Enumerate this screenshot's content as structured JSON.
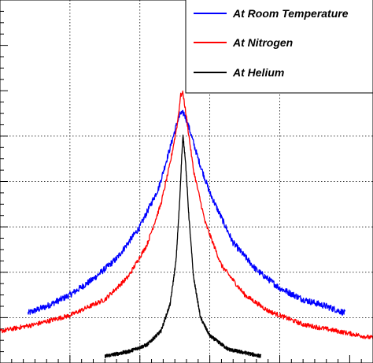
{
  "chart_data": {
    "type": "line",
    "title": "",
    "xlabel": "",
    "ylabel": "",
    "grid": true,
    "legend_position": "top-right",
    "xlim": [
      0,
      16
    ],
    "ylim": [
      0,
      16
    ],
    "x_gridlines": [
      3,
      6,
      9,
      12
    ],
    "y_gridlines": [
      2,
      4,
      6,
      8,
      10
    ],
    "series": [
      {
        "name": "At Room Temperature",
        "color": "#0000ff",
        "noise": 0.14,
        "points": [
          [
            1.2,
            2.2
          ],
          [
            2.0,
            2.5
          ],
          [
            3.0,
            3.0
          ],
          [
            4.0,
            3.7
          ],
          [
            5.0,
            4.6
          ],
          [
            6.0,
            6.0
          ],
          [
            6.8,
            7.7
          ],
          [
            7.3,
            9.5
          ],
          [
            7.6,
            10.6
          ],
          [
            7.75,
            11.0
          ],
          [
            7.9,
            11.0
          ],
          [
            8.1,
            10.4
          ],
          [
            8.5,
            9.0
          ],
          [
            9.0,
            7.5
          ],
          [
            10.0,
            5.3
          ],
          [
            11.0,
            4.1
          ],
          [
            12.0,
            3.3
          ],
          [
            13.0,
            2.8
          ],
          [
            14.0,
            2.5
          ],
          [
            14.8,
            2.2
          ]
        ]
      },
      {
        "name": "At Nitrogen",
        "color": "#ff0000",
        "noise": 0.1,
        "points": [
          [
            0.0,
            1.4
          ],
          [
            1.5,
            1.7
          ],
          [
            3.0,
            2.1
          ],
          [
            4.5,
            2.8
          ],
          [
            5.5,
            3.8
          ],
          [
            6.3,
            5.2
          ],
          [
            6.9,
            7.0
          ],
          [
            7.3,
            8.8
          ],
          [
            7.6,
            10.5
          ],
          [
            7.75,
            11.8
          ],
          [
            7.85,
            11.9
          ],
          [
            8.0,
            10.8
          ],
          [
            8.3,
            8.5
          ],
          [
            8.8,
            6.2
          ],
          [
            9.5,
            4.3
          ],
          [
            10.5,
            3.0
          ],
          [
            11.5,
            2.3
          ],
          [
            13.0,
            1.7
          ],
          [
            14.5,
            1.4
          ],
          [
            16.0,
            1.1
          ]
        ]
      },
      {
        "name": "At Helium",
        "color": "#000000",
        "noise": 0.08,
        "points": [
          [
            4.5,
            0.3
          ],
          [
            5.5,
            0.5
          ],
          [
            6.3,
            0.8
          ],
          [
            6.9,
            1.4
          ],
          [
            7.3,
            2.6
          ],
          [
            7.55,
            4.5
          ],
          [
            7.7,
            7.0
          ],
          [
            7.8,
            9.2
          ],
          [
            7.85,
            10.0
          ],
          [
            7.95,
            9.0
          ],
          [
            8.1,
            6.5
          ],
          [
            8.3,
            3.8
          ],
          [
            8.6,
            2.0
          ],
          [
            9.0,
            1.2
          ],
          [
            9.8,
            0.6
          ],
          [
            11.2,
            0.3
          ]
        ]
      }
    ]
  }
}
